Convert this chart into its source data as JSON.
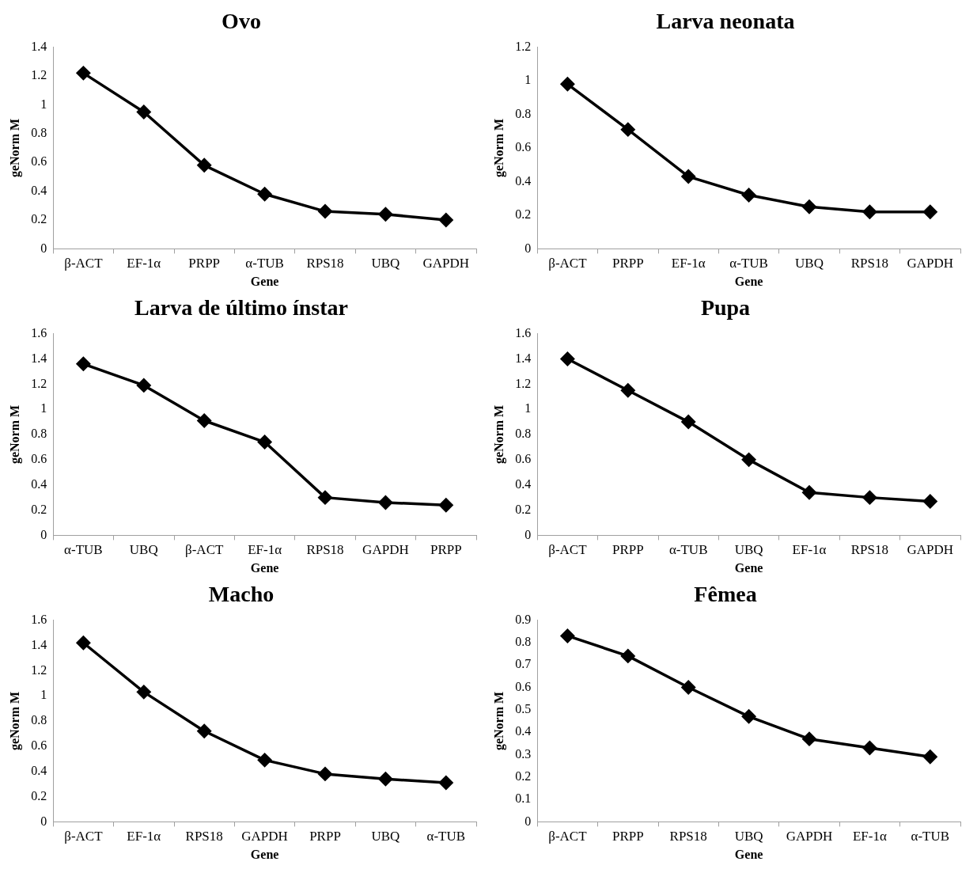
{
  "chart_data": [
    {
      "type": "line",
      "title": "Ovo",
      "xlabel": "Gene",
      "ylabel": "geNorm M",
      "categories": [
        "β-ACT",
        "EF-1α",
        "PRPP",
        "α-TUB",
        "RPS18",
        "UBQ",
        "GAPDH"
      ],
      "values": [
        1.22,
        0.95,
        0.58,
        0.38,
        0.26,
        0.24,
        0.2
      ],
      "color": "#000000",
      "marker": "diamond",
      "line_style": "solid",
      "grid": false,
      "legend": false,
      "ylim": [
        0,
        1.4
      ],
      "yticks": [
        0,
        0.2,
        0.4,
        0.6,
        0.8,
        1,
        1.2,
        1.4
      ]
    },
    {
      "type": "line",
      "title": "Larva neonata",
      "xlabel": "Gene",
      "ylabel": "geNorm M",
      "categories": [
        "β-ACT",
        "PRPP",
        "EF-1α",
        "α-TUB",
        "UBQ",
        "RPS18",
        "GAPDH"
      ],
      "values": [
        0.98,
        0.71,
        0.43,
        0.32,
        0.25,
        0.22,
        0.22
      ],
      "color": "#000000",
      "marker": "diamond",
      "line_style": "solid",
      "grid": false,
      "legend": false,
      "ylim": [
        0,
        1.2
      ],
      "yticks": [
        0,
        0.2,
        0.4,
        0.6,
        0.8,
        1,
        1.2
      ]
    },
    {
      "type": "line",
      "title": "Larva de último ínstar",
      "xlabel": "Gene",
      "ylabel": "geNorm M",
      "categories": [
        "α-TUB",
        "UBQ",
        "β-ACT",
        "EF-1α",
        "RPS18",
        "GAPDH",
        "PRPP"
      ],
      "values": [
        1.36,
        1.19,
        0.91,
        0.74,
        0.3,
        0.26,
        0.24
      ],
      "color": "#000000",
      "marker": "diamond",
      "line_style": "solid",
      "grid": false,
      "legend": false,
      "ylim": [
        0,
        1.6
      ],
      "yticks": [
        0,
        0.2,
        0.4,
        0.6,
        0.8,
        1,
        1.2,
        1.4,
        1.6
      ]
    },
    {
      "type": "line",
      "title": "Pupa",
      "xlabel": "Gene",
      "ylabel": "geNorm M",
      "categories": [
        "β-ACT",
        "PRPP",
        "α-TUB",
        "UBQ",
        "EF-1α",
        "RPS18",
        "GAPDH"
      ],
      "values": [
        1.4,
        1.15,
        0.9,
        0.6,
        0.34,
        0.3,
        0.27
      ],
      "color": "#000000",
      "marker": "diamond",
      "line_style": "solid",
      "grid": false,
      "legend": false,
      "ylim": [
        0,
        1.6
      ],
      "yticks": [
        0,
        0.2,
        0.4,
        0.6,
        0.8,
        1,
        1.2,
        1.4,
        1.6
      ]
    },
    {
      "type": "line",
      "title": "Macho",
      "xlabel": "Gene",
      "ylabel": "geNorm M",
      "categories": [
        "β-ACT",
        "EF-1α",
        "RPS18",
        "GAPDH",
        "PRPP",
        "UBQ",
        "α-TUB"
      ],
      "values": [
        1.42,
        1.03,
        0.72,
        0.49,
        0.38,
        0.34,
        0.31
      ],
      "color": "#000000",
      "marker": "diamond",
      "line_style": "solid",
      "grid": false,
      "legend": false,
      "ylim": [
        0,
        1.6
      ],
      "yticks": [
        0,
        0.2,
        0.4,
        0.6,
        0.8,
        1,
        1.2,
        1.4,
        1.6
      ]
    },
    {
      "type": "line",
      "title": "Fêmea",
      "xlabel": "Gene",
      "ylabel": "geNorm M",
      "categories": [
        "β-ACT",
        "PRPP",
        "RPS18",
        "UBQ",
        "GAPDH",
        "EF-1α",
        "α-TUB"
      ],
      "values": [
        0.83,
        0.74,
        0.6,
        0.47,
        0.37,
        0.33,
        0.29
      ],
      "color": "#000000",
      "marker": "diamond",
      "line_style": "solid",
      "grid": false,
      "legend": false,
      "ylim": [
        0,
        0.9
      ],
      "yticks": [
        0,
        0.1,
        0.2,
        0.3,
        0.4,
        0.5,
        0.6,
        0.7,
        0.8,
        0.9
      ]
    }
  ]
}
